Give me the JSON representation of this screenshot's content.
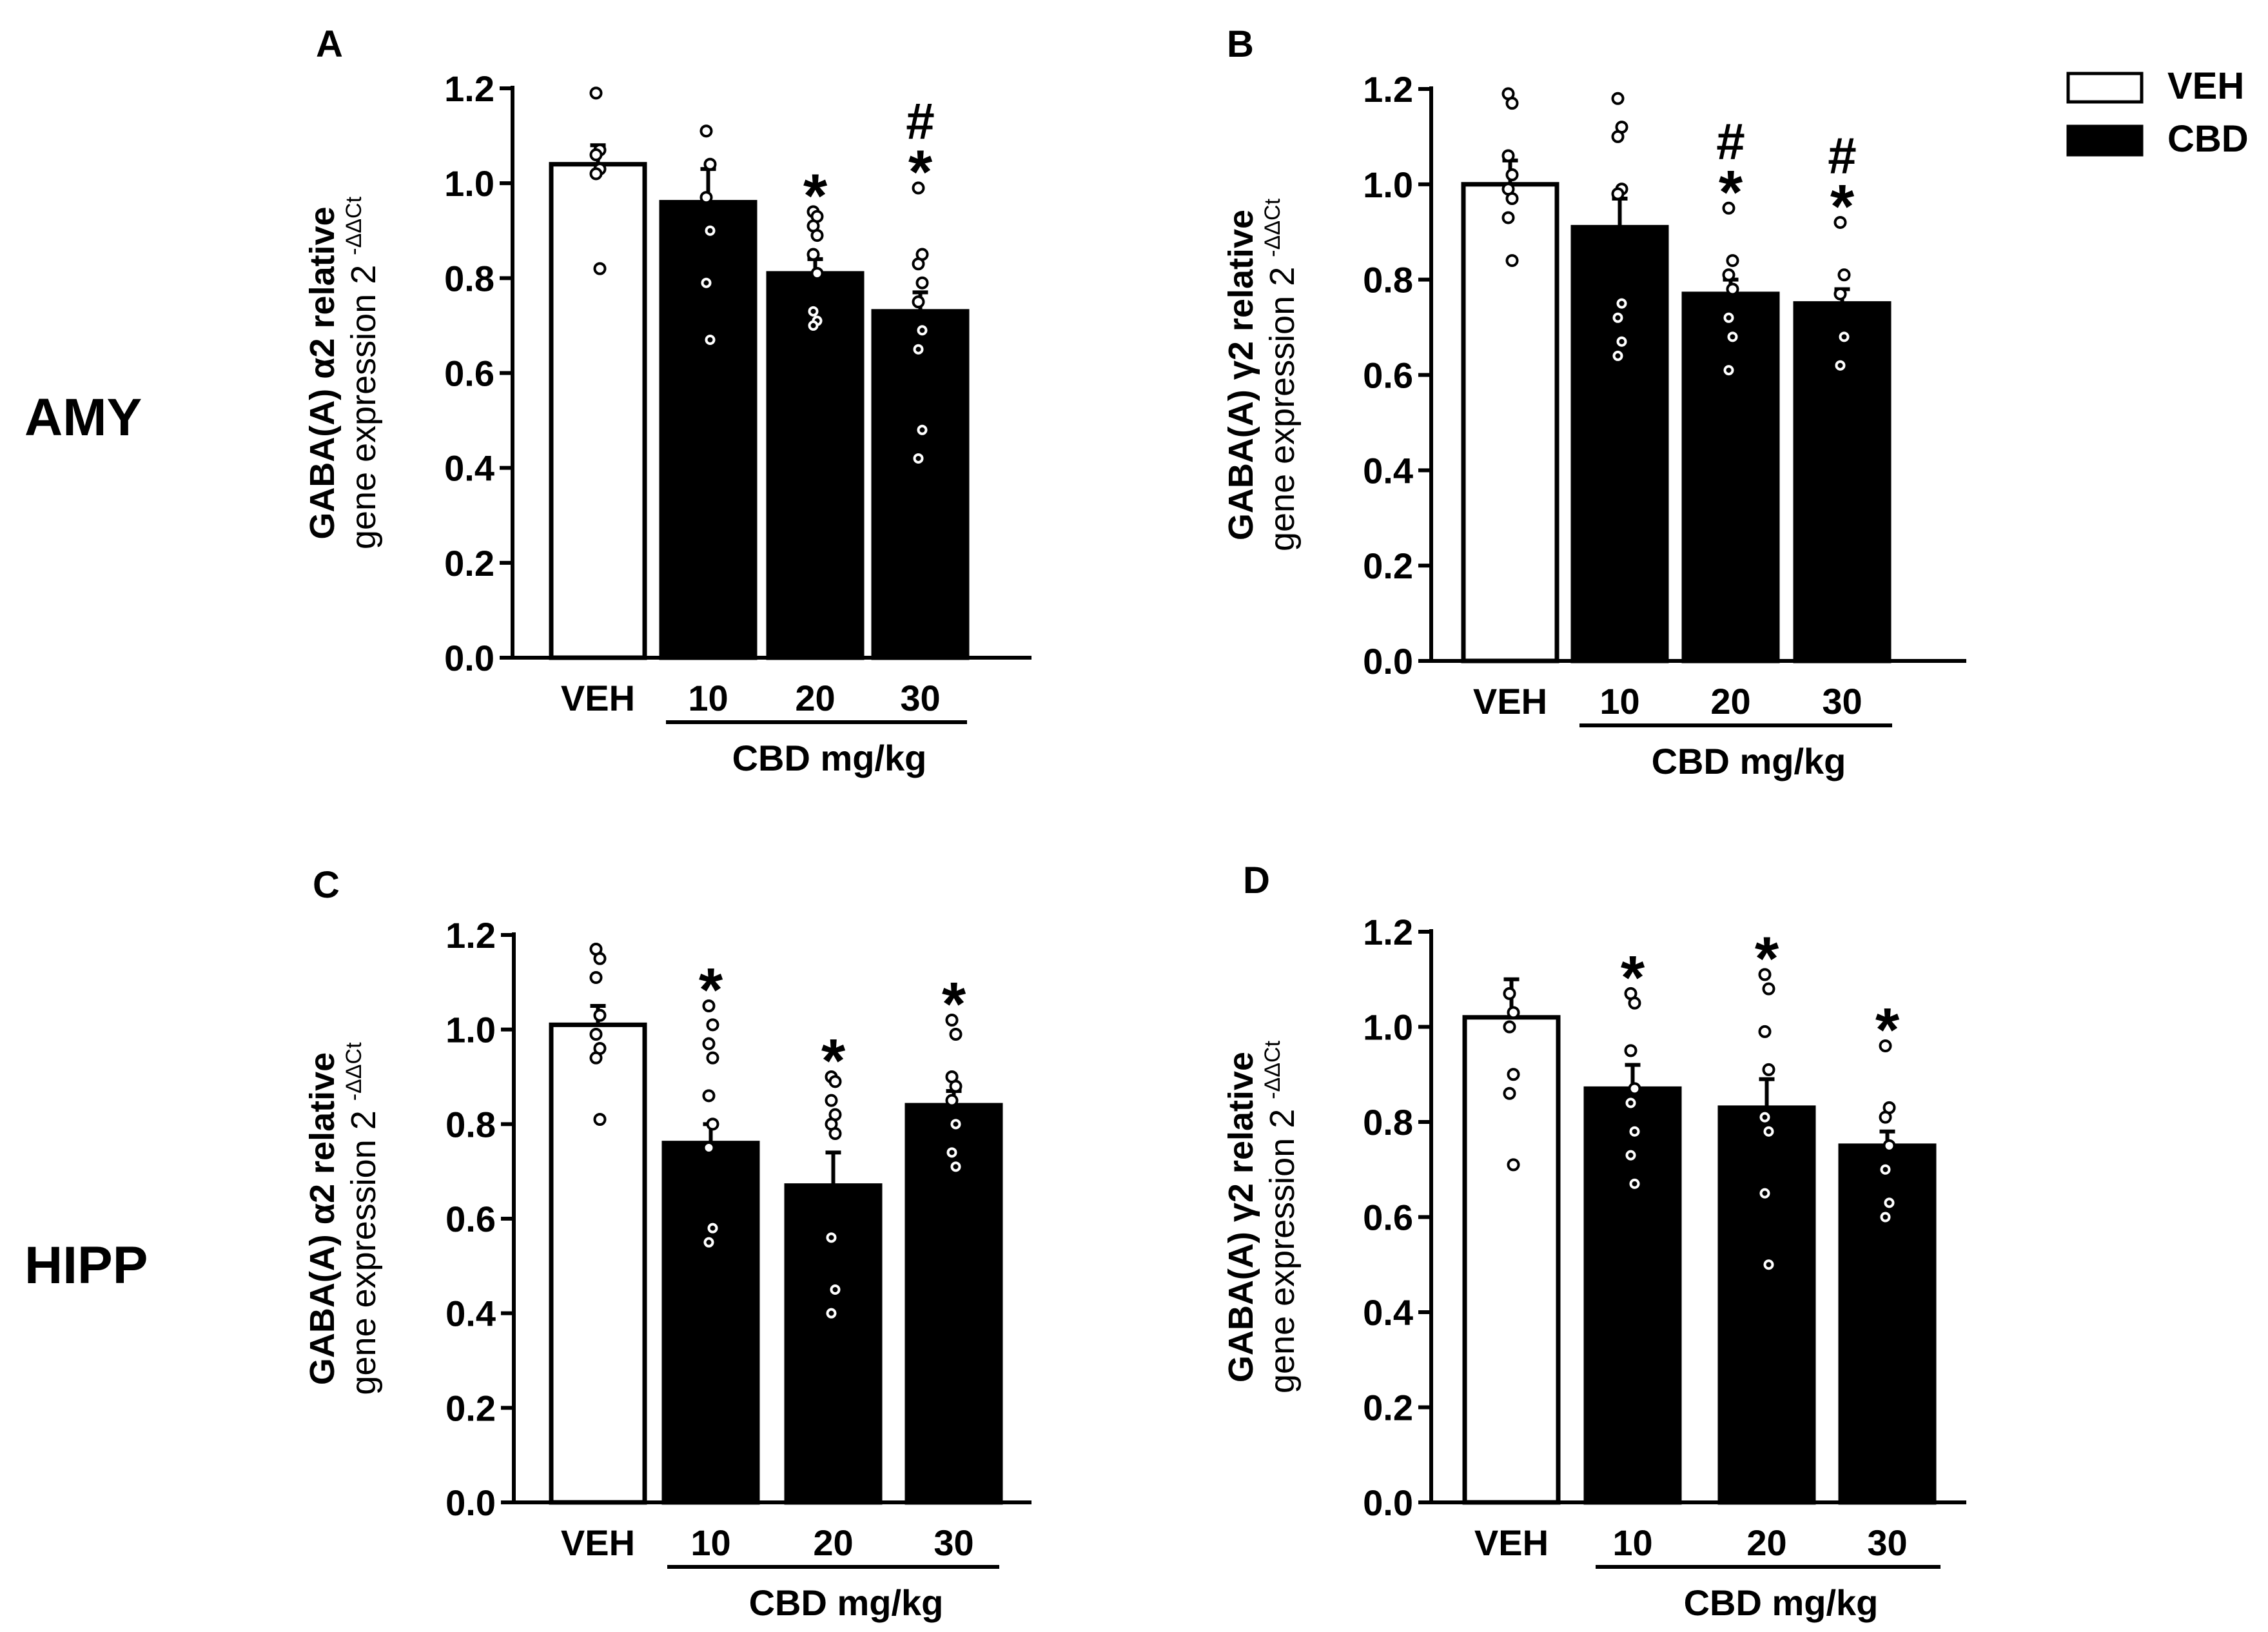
{
  "figure": {
    "row_labels": [
      "AMY",
      "HIPP"
    ],
    "legend": {
      "veh_label": "VEH",
      "cbd_label": "CBD",
      "veh_fill": "#ffffff",
      "cbd_fill": "#000000"
    },
    "dose_group_label": "CBD mg/kg"
  },
  "chart_data": [
    {
      "type": "bar",
      "panel": "A",
      "region": "AMY",
      "ylabel_line1": "GABA(A) α2 relative",
      "ylabel_line2": "gene expression 2",
      "ylabel_superscript": "-ΔΔCt",
      "xlabel": "CBD mg/kg",
      "ylim": [
        0,
        1.2
      ],
      "yticks": [
        "0.0",
        "0.2",
        "0.4",
        "0.6",
        "0.8",
        "1.0",
        "1.2"
      ],
      "categories": [
        "VEH",
        "10",
        "20",
        "30"
      ],
      "values": [
        1.04,
        0.96,
        0.81,
        0.73
      ],
      "errors": [
        0.04,
        0.07,
        0.03,
        0.04
      ],
      "points": [
        [
          1.19,
          1.07,
          1.06,
          1.03,
          1.02,
          0.82
        ],
        [
          1.11,
          1.04,
          0.97,
          0.9,
          0.79,
          0.67
        ],
        [
          0.94,
          0.93,
          0.91,
          0.89,
          0.85,
          0.81,
          0.73,
          0.71,
          0.7
        ],
        [
          0.99,
          0.85,
          0.83,
          0.79,
          0.75,
          0.69,
          0.65,
          0.48,
          0.42
        ]
      ],
      "annotations": [
        "",
        "",
        "*",
        "#*"
      ]
    },
    {
      "type": "bar",
      "panel": "B",
      "region": "AMY",
      "ylabel_line1": "GABA(A) γ2 relative",
      "ylabel_line2": "gene expression 2",
      "ylabel_superscript": "-ΔΔCt",
      "xlabel": "CBD mg/kg",
      "ylim": [
        0,
        1.2
      ],
      "yticks": [
        "0.0",
        "0.2",
        "0.4",
        "0.6",
        "0.8",
        "1.0",
        "1.2"
      ],
      "categories": [
        "VEH",
        "10",
        "20",
        "30"
      ],
      "values": [
        1.0,
        0.91,
        0.77,
        0.75
      ],
      "errors": [
        0.05,
        0.06,
        0.03,
        0.03
      ],
      "points": [
        [
          1.19,
          1.17,
          1.06,
          1.02,
          0.99,
          0.97,
          0.93,
          0.84
        ],
        [
          1.18,
          1.12,
          1.1,
          0.99,
          0.98,
          0.75,
          0.72,
          0.67,
          0.64
        ],
        [
          0.95,
          0.84,
          0.81,
          0.78,
          0.72,
          0.68,
          0.61
        ],
        [
          0.92,
          0.81,
          0.77,
          0.68,
          0.62
        ]
      ],
      "annotations": [
        "",
        "",
        "#*",
        "#*"
      ]
    },
    {
      "type": "bar",
      "panel": "C",
      "region": "HIPP",
      "ylabel_line1": "GABA(A) α2 relative",
      "ylabel_line2": "gene expression 2",
      "ylabel_superscript": "-ΔΔCt",
      "xlabel": "CBD mg/kg",
      "ylim": [
        0,
        1.2
      ],
      "yticks": [
        "0.0",
        "0.2",
        "0.4",
        "0.6",
        "0.8",
        "1.0",
        "1.2"
      ],
      "categories": [
        "VEH",
        "10",
        "20",
        "30"
      ],
      "values": [
        1.01,
        0.76,
        0.67,
        0.84
      ],
      "errors": [
        0.04,
        0.04,
        0.07,
        0.03
      ],
      "points": [
        [
          1.17,
          1.15,
          1.11,
          1.03,
          0.99,
          0.96,
          0.94,
          0.81
        ],
        [
          1.05,
          1.01,
          0.97,
          0.94,
          0.86,
          0.8,
          0.75,
          0.58,
          0.55
        ],
        [
          0.9,
          0.89,
          0.85,
          0.82,
          0.8,
          0.78,
          0.56,
          0.45,
          0.4
        ],
        [
          1.02,
          0.99,
          0.9,
          0.88,
          0.85,
          0.8,
          0.74,
          0.71
        ]
      ],
      "annotations": [
        "",
        "*",
        "*",
        "*"
      ]
    },
    {
      "type": "bar",
      "panel": "D",
      "region": "HIPP",
      "ylabel_line1": "GABA(A) γ2 relative",
      "ylabel_line2": "gene expression 2",
      "ylabel_superscript": "-ΔΔCt",
      "xlabel": "CBD mg/kg",
      "ylim": [
        0,
        1.2
      ],
      "yticks": [
        "0.0",
        "0.2",
        "0.4",
        "0.6",
        "0.8",
        "1.0",
        "1.2"
      ],
      "categories": [
        "VEH",
        "10",
        "20",
        "30"
      ],
      "values": [
        1.02,
        0.87,
        0.83,
        0.75
      ],
      "errors": [
        0.08,
        0.05,
        0.06,
        0.03
      ],
      "points": [
        [
          1.07,
          1.03,
          1.0,
          0.9,
          0.86,
          0.71
        ],
        [
          1.07,
          1.05,
          0.95,
          0.87,
          0.84,
          0.78,
          0.73,
          0.67
        ],
        [
          1.11,
          1.08,
          0.99,
          0.91,
          0.81,
          0.78,
          0.65,
          0.5
        ],
        [
          0.96,
          0.83,
          0.81,
          0.75,
          0.7,
          0.63,
          0.6
        ]
      ],
      "annotations": [
        "",
        "*",
        "*",
        "*"
      ]
    }
  ]
}
